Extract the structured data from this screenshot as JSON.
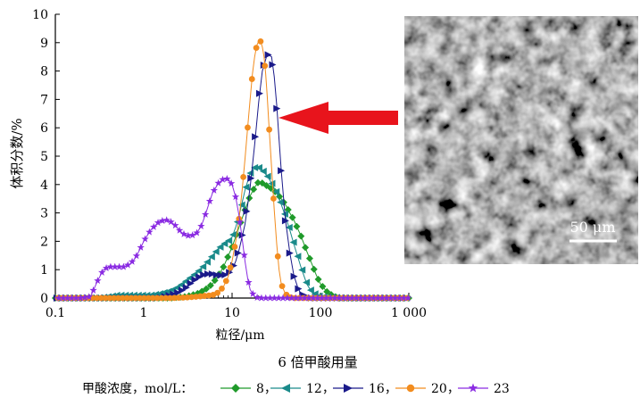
{
  "chart_data": {
    "type": "scatter",
    "xscale": "log",
    "xlim": [
      0.1,
      1000
    ],
    "ylim": [
      0,
      10
    ],
    "xticks": [
      0.1,
      1,
      10,
      100,
      1000
    ],
    "xtick_labels": [
      "0.1",
      "1",
      "10",
      "100",
      "1 000"
    ],
    "yticks": [
      0,
      1,
      2,
      3,
      4,
      5,
      6,
      7,
      8,
      9,
      10
    ],
    "ytick_labels": [
      "0",
      "1",
      "2",
      "3",
      "4",
      "5",
      "6",
      "7",
      "8",
      "9",
      "10"
    ],
    "xlabel": "粒径/μm",
    "ylabel": "体积分数/%",
    "title": "6 倍甲酸用量",
    "legend_title": "甲酸浓度，mol/L：",
    "legend_position": "bottom",
    "grid": false,
    "series": [
      {
        "name": "8",
        "color": "#1f9a2a",
        "marker": "diamond",
        "x": [
          0.1,
          0.2,
          0.3,
          0.4,
          0.6,
          0.8,
          1,
          1.5,
          2,
          3,
          4,
          5,
          6,
          7,
          8,
          10,
          12,
          14,
          16,
          18,
          20,
          22,
          25,
          28,
          32,
          36,
          40,
          45,
          50,
          60,
          70,
          80,
          90,
          100,
          120,
          140,
          160,
          200,
          300,
          1000
        ],
        "y": [
          0,
          0,
          0,
          0,
          0,
          0,
          0,
          0,
          0,
          0.05,
          0.15,
          0.3,
          0.5,
          0.8,
          1.1,
          1.8,
          2.5,
          3.1,
          3.6,
          3.9,
          4.1,
          4.05,
          3.95,
          3.85,
          3.7,
          3.5,
          3.3,
          3.0,
          2.75,
          2.2,
          1.65,
          1.2,
          0.8,
          0.5,
          0.2,
          0.08,
          0,
          0,
          0,
          0
        ]
      },
      {
        "name": "12",
        "color": "#1a8a8a",
        "marker": "triangle-left",
        "x": [
          0.1,
          0.2,
          0.3,
          0.4,
          0.5,
          0.6,
          0.8,
          1,
          1.2,
          1.5,
          2,
          2.5,
          3,
          4,
          5,
          6,
          7,
          8,
          9,
          10,
          11,
          12,
          14,
          16,
          18,
          20,
          22,
          25,
          28,
          32,
          36,
          40,
          45,
          50,
          60,
          70,
          80,
          100,
          200,
          1000
        ],
        "y": [
          0,
          0,
          0,
          0.05,
          0.1,
          0.1,
          0.1,
          0.1,
          0.1,
          0.15,
          0.25,
          0.4,
          0.6,
          0.9,
          1.2,
          1.5,
          1.75,
          1.9,
          2.0,
          2.15,
          2.5,
          2.9,
          3.8,
          4.4,
          4.6,
          4.6,
          4.5,
          4.3,
          4.05,
          3.7,
          3.3,
          2.9,
          2.4,
          1.9,
          1.1,
          0.5,
          0.2,
          0.05,
          0,
          0
        ]
      },
      {
        "name": "16",
        "color": "#1a1a8a",
        "marker": "triangle-right",
        "x": [
          0.1,
          0.2,
          0.3,
          0.5,
          0.8,
          1,
          1.5,
          2,
          2.5,
          3,
          3.5,
          4,
          5,
          6,
          7,
          8,
          9,
          10,
          11,
          12,
          14,
          16,
          18,
          20,
          22,
          25,
          28,
          30,
          32,
          34,
          36,
          40,
          45,
          50,
          55,
          60,
          70,
          80,
          100,
          1000
        ],
        "y": [
          0,
          0,
          0,
          0,
          0,
          0,
          0,
          0.1,
          0.2,
          0.35,
          0.55,
          0.7,
          0.85,
          0.85,
          0.8,
          0.8,
          0.85,
          1.0,
          1.3,
          1.7,
          2.6,
          3.9,
          5.4,
          6.9,
          8.0,
          8.6,
          8.5,
          7.8,
          6.8,
          5.6,
          4.5,
          2.8,
          1.6,
          0.8,
          0.4,
          0.15,
          0.05,
          0,
          0,
          0
        ]
      },
      {
        "name": "20",
        "color": "#f28c1e",
        "marker": "circle",
        "x": [
          0.1,
          0.2,
          0.3,
          0.5,
          1,
          2,
          3,
          4,
          5,
          6,
          7,
          8,
          9,
          10,
          11,
          12,
          13,
          14,
          15,
          16,
          17,
          18,
          19,
          20,
          21,
          22,
          23,
          24,
          25,
          26,
          28,
          30,
          32,
          34,
          36,
          40,
          45,
          50,
          60,
          1000
        ],
        "y": [
          0,
          0,
          0,
          0,
          0,
          0,
          0.02,
          0.05,
          0.08,
          0.1,
          0.2,
          0.4,
          0.75,
          1.3,
          2.0,
          2.8,
          3.8,
          4.9,
          6.0,
          7.0,
          7.9,
          8.5,
          8.9,
          9.05,
          9.05,
          8.85,
          8.5,
          7.9,
          7.1,
          6.2,
          4.6,
          3.1,
          1.9,
          1.0,
          0.5,
          0.15,
          0.03,
          0,
          0,
          0
        ]
      },
      {
        "name": "23",
        "color": "#8a2be2",
        "marker": "star",
        "x": [
          0.1,
          0.15,
          0.2,
          0.25,
          0.3,
          0.35,
          0.4,
          0.5,
          0.6,
          0.7,
          0.8,
          0.9,
          1,
          1.2,
          1.5,
          1.8,
          2,
          2.3,
          2.6,
          3,
          3.5,
          4,
          4.5,
          5,
          5.5,
          6,
          7,
          8,
          9,
          10,
          11,
          12,
          13,
          14,
          15,
          16,
          18,
          20,
          25,
          1000
        ],
        "y": [
          0,
          0,
          0,
          0.05,
          0.6,
          1.0,
          1.1,
          1.1,
          1.1,
          1.2,
          1.4,
          1.7,
          2.0,
          2.4,
          2.7,
          2.75,
          2.7,
          2.55,
          2.35,
          2.2,
          2.2,
          2.3,
          2.55,
          2.95,
          3.35,
          3.7,
          4.05,
          4.2,
          4.2,
          4.0,
          3.55,
          2.9,
          2.1,
          1.3,
          0.7,
          0.3,
          0.05,
          0,
          0,
          0
        ]
      }
    ],
    "annotations": [
      "arrow pointing to series 16 peak",
      "inset SEM micrograph"
    ],
    "inset_scale_label": "50 μm"
  }
}
